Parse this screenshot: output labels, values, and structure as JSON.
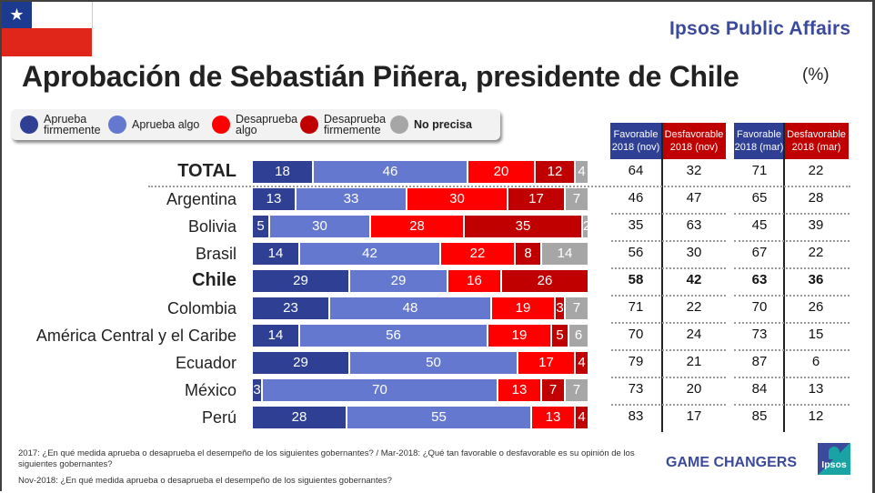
{
  "header": {
    "brand": "Ipsos Public Affairs",
    "title": "Aprobación de Sebastián Piñera, presidente de Chile",
    "unit": "(%)",
    "flag_star": "★"
  },
  "legend": [
    {
      "label": "Aprueba firmemente",
      "color": "#2e3f94"
    },
    {
      "label": "Aprueba algo",
      "color": "#6478cf"
    },
    {
      "label": "Desaprueba algo",
      "color": "#ff0000"
    },
    {
      "label": "Desaprueba firmemente",
      "color": "#c00000"
    },
    {
      "label": "No precisa",
      "color": "#a6a6a6"
    }
  ],
  "table": {
    "headers": [
      {
        "label": "Favorable 2018 (nov)",
        "color": "#2e3f94"
      },
      {
        "label": "Desfavorable 2018 (nov)",
        "color": "#c00000"
      },
      {
        "label": "Favorable 2018 (mar)",
        "color": "#2e3f94"
      },
      {
        "label": "Desfavorable 2018 (mar)",
        "color": "#c00000"
      }
    ]
  },
  "chart_data": {
    "type": "bar",
    "orientation": "horizontal-stacked-100",
    "title": "Aprobación de Sebastián Piñera, presidente de Chile",
    "unit": "%",
    "categories": [
      "TOTAL",
      "Argentina",
      "Bolivia",
      "Brasil",
      "Chile",
      "Colombia",
      "América Central y el Caribe",
      "Ecuador",
      "México",
      "Perú"
    ],
    "bold_categories": [
      "TOTAL",
      "Chile"
    ],
    "series": [
      {
        "name": "Aprueba firmemente",
        "values": [
          18,
          13,
          5,
          14,
          29,
          23,
          14,
          29,
          3,
          28
        ]
      },
      {
        "name": "Aprueba algo",
        "values": [
          46,
          33,
          30,
          42,
          29,
          48,
          56,
          50,
          70,
          55
        ]
      },
      {
        "name": "Desaprueba algo",
        "values": [
          20,
          30,
          28,
          22,
          16,
          19,
          19,
          17,
          13,
          13
        ]
      },
      {
        "name": "Desaprueba firmemente",
        "values": [
          12,
          17,
          35,
          8,
          26,
          3,
          5,
          4,
          7,
          4
        ]
      },
      {
        "name": "No precisa",
        "values": [
          4,
          7,
          2,
          14,
          null,
          7,
          6,
          null,
          7,
          null
        ]
      }
    ],
    "side_table": {
      "columns": [
        "Favorable 2018 (nov)",
        "Desfavorable 2018 (nov)",
        "Favorable 2018 (mar)",
        "Desfavorable 2018 (mar)"
      ],
      "rows": [
        [
          64,
          32,
          71,
          22
        ],
        [
          46,
          47,
          65,
          28
        ],
        [
          35,
          63,
          45,
          39
        ],
        [
          56,
          30,
          67,
          22
        ],
        [
          58,
          42,
          63,
          36
        ],
        [
          71,
          22,
          70,
          26
        ],
        [
          70,
          24,
          73,
          15
        ],
        [
          79,
          21,
          87,
          6
        ],
        [
          73,
          20,
          84,
          13
        ],
        [
          83,
          17,
          85,
          12
        ]
      ]
    },
    "legend_position": "top-left",
    "grid": false
  },
  "footer": {
    "note1": "2017: ¿En qué medida aprueba o desaprueba el desempeño de los siguientes gobernantes? / Mar-2018: ¿Qué tan favorable o desfavorable es su opinión de los siguientes gobernantes?",
    "note2": "Nov-2018: ¿En qué medida aprueba o desaprueba el desempeño de los siguientes gobernantes?",
    "tagline": "GAME CHANGERS",
    "logo_text": "Ipsos"
  }
}
